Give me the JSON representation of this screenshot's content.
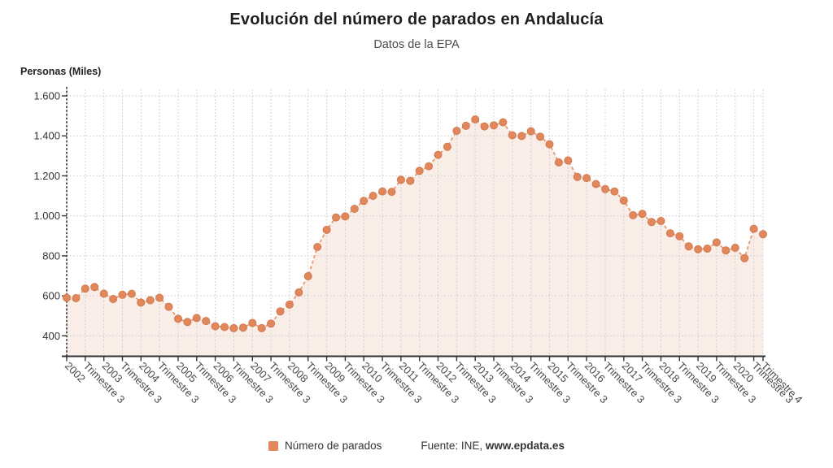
{
  "header": {
    "title": "Evolución del número de parados en Andalucía",
    "subtitle": "Datos de la EPA"
  },
  "axis": {
    "y_label": "Personas (Miles)"
  },
  "legend": {
    "series_label": "Número de parados",
    "source_prefix": "Fuente: INE, ",
    "source_site": "www.epdata.es"
  },
  "colors": {
    "point": "#E2875C",
    "line": "#E8A27C",
    "area_fill": "#F9EDE8",
    "grid": "#C9C9C9",
    "axis": "#333333",
    "tick_text": "#333333",
    "x_label_text": "#4A4A4A"
  },
  "chart_data": {
    "type": "line",
    "title": "Evolución del número de parados en Andalucía",
    "subtitle": "Datos de la EPA",
    "ylabel": "Personas (Miles)",
    "x_start": "2002 Trimestre 1",
    "x_end": "2020 Trimestre 4",
    "points_per_year": 4,
    "grid": true,
    "legend_position": "bottom",
    "ylim": [
      400,
      1600
    ],
    "y_ticks": [
      400,
      600,
      800,
      1000,
      1200,
      1400,
      1600
    ],
    "y_tick_labels": [
      "400",
      "600",
      "800",
      "1.000",
      "1.200",
      "1.400",
      "1.600"
    ],
    "x_tick_labels": [
      "2002",
      "Trimestre 3",
      "2003",
      "Trimestre 3",
      "2004",
      "Trimestre 3",
      "2005",
      "Trimestre 3",
      "2006",
      "Trimestre 3",
      "2007",
      "Trimestre 3",
      "2008",
      "Trimestre 3",
      "2009",
      "Trimestre 3",
      "2010",
      "Trimestre 3",
      "2011",
      "Trimestre 3",
      "2012",
      "Trimestre 3",
      "2013",
      "Trimestre 3",
      "2014",
      "Trimestre 3",
      "2015",
      "Trimestre 3",
      "2016",
      "Trimestre 3",
      "2017",
      "Trimestre 3",
      "2018",
      "Trimestre 3",
      "2019",
      "Trimestre 3",
      "2020",
      "Trimestre 3",
      "Trimestre 4"
    ],
    "series": [
      {
        "name": "Número de parados",
        "values": [
          590,
          588,
          636,
          644,
          611,
          584,
          605,
          610,
          566,
          578,
          590,
          545,
          485,
          469,
          489,
          474,
          448,
          444,
          438,
          441,
          464,
          438,
          461,
          522,
          556,
          617,
          698,
          844,
          930,
          992,
          997,
          1035,
          1075,
          1100,
          1122,
          1120,
          1180,
          1175,
          1225,
          1248,
          1305,
          1345,
          1425,
          1450,
          1482,
          1447,
          1453,
          1468,
          1403,
          1399,
          1423,
          1396,
          1358,
          1267,
          1277,
          1195,
          1189,
          1159,
          1134,
          1122,
          1077,
          1003,
          1010,
          969,
          974,
          913,
          898,
          847,
          833,
          836,
          867,
          827,
          840,
          788,
          935,
          908
        ]
      }
    ]
  }
}
